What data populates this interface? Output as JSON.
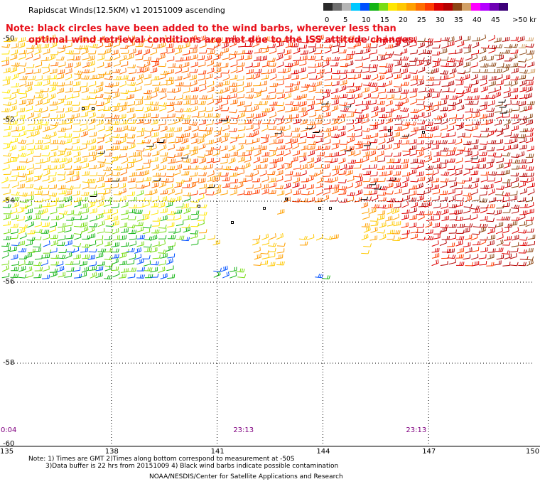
{
  "title": "Rapidscat Winds(12.5KM) v1 20151009 ascending",
  "note": {
    "line1": "Note: black circles have been added to the wind barbs, wherever less than",
    "line2": "optimal wind retrieval conditions are met due to the ISS attitude changes."
  },
  "legend": {
    "labels": [
      "0",
      "5",
      "10",
      "15",
      "20",
      "25",
      "30",
      "35",
      "40",
      "45",
      ">50 knots"
    ],
    "colors": [
      "#2a2a2a",
      "#6e6e6e",
      "#b4b4b4",
      "#00c8ff",
      "#0050ff",
      "#14b414",
      "#78dc14",
      "#ffe600",
      "#ffc800",
      "#ffa000",
      "#ff6e00",
      "#ff3c00",
      "#dc0000",
      "#b40000",
      "#8b4513",
      "#d2a064",
      "#ff00ff",
      "#b400ff",
      "#6e00b4",
      "#3c0078"
    ]
  },
  "map": {
    "lat_labels": [
      "-50",
      "-52",
      "-54",
      "-56",
      "-58",
      "-60"
    ],
    "lon_labels": [
      "135",
      "138",
      "141",
      "144",
      "147",
      "150"
    ],
    "lon_range": [
      135,
      150
    ],
    "lat_range": [
      -60,
      -50
    ],
    "time_labels": [
      {
        "text": "0:04",
        "lon": 135.1
      },
      {
        "text": "23:13",
        "lon": 141.7
      },
      {
        "text": "23:13",
        "lon": 146.6
      }
    ],
    "grid": "dotted"
  },
  "footnotes": {
    "line1": "Note: 1) Times are GMT 2)Times along bottom correspond to measurement at -50S",
    "line2": "3)Data buffer is 22 hrs from 20151009 4) Black wind barbs indicate possible contamination",
    "credit": "NOAA/NESDIS/Center for Satellite Applications and Research"
  }
}
